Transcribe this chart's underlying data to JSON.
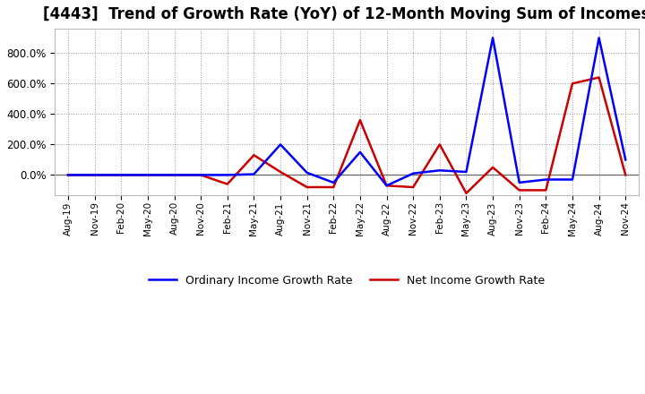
{
  "title": "[4443]  Trend of Growth Rate (YoY) of 12-Month Moving Sum of Incomes",
  "title_fontsize": 12,
  "background_color": "#ffffff",
  "plot_bg_color": "#ffffff",
  "grid_color": "#999999",
  "line_color_ordinary": "#0000ff",
  "line_color_net": "#cc0000",
  "line_width": 1.8,
  "legend_ordinary": "Ordinary Income Growth Rate",
  "legend_net": "Net Income Growth Rate",
  "x_labels": [
    "Aug-19",
    "Nov-19",
    "Feb-20",
    "May-20",
    "Aug-20",
    "Nov-20",
    "Feb-21",
    "May-21",
    "Aug-21",
    "Nov-21",
    "Feb-22",
    "May-22",
    "Aug-22",
    "Nov-22",
    "Feb-23",
    "May-23",
    "Aug-23",
    "Nov-23",
    "Feb-24",
    "May-24",
    "Aug-24",
    "Nov-24"
  ],
  "ylim": [
    -130,
    960
  ],
  "yticks": [
    0,
    200,
    400,
    600,
    800
  ],
  "ordinary_y": [
    0,
    0,
    0,
    0,
    0,
    0,
    0,
    5,
    200,
    15,
    -50,
    150,
    -70,
    10,
    30,
    20,
    900,
    -50,
    -30,
    -30,
    900,
    100
  ],
  "net_y": [
    0,
    0,
    0,
    0,
    0,
    0,
    -60,
    130,
    20,
    -80,
    -80,
    360,
    -70,
    -80,
    200,
    -120,
    50,
    -100,
    -100,
    600,
    640,
    0
  ]
}
